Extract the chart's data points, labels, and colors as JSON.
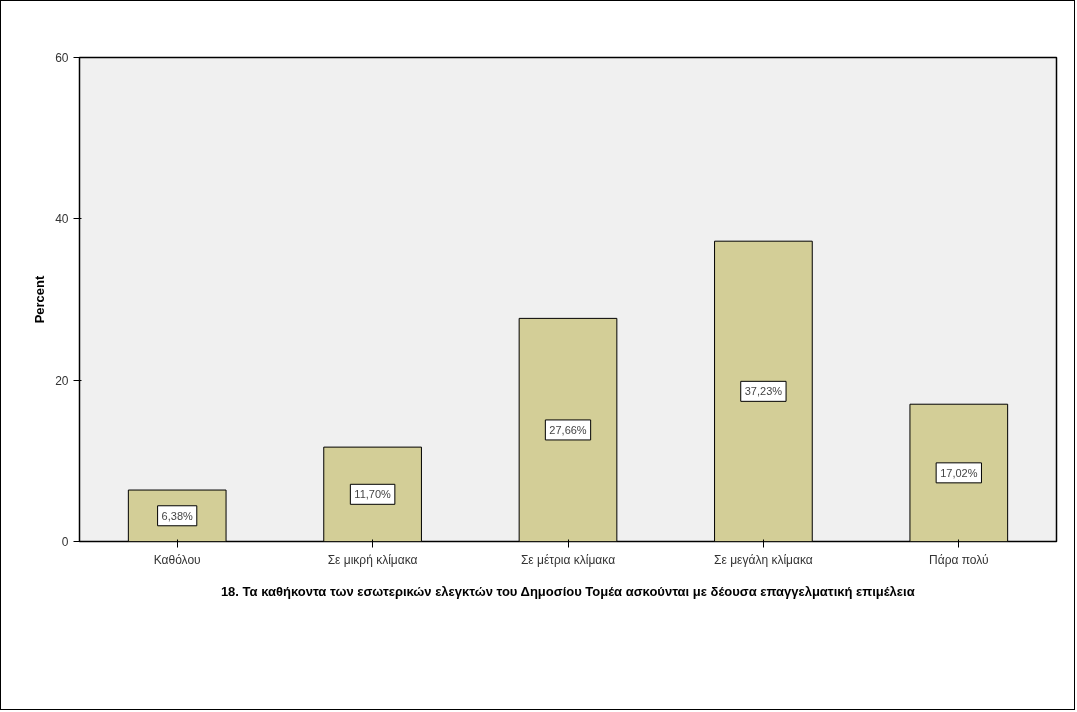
{
  "chart_data": {
    "type": "bar",
    "xlabel": "18. Τα καθήκοντα των εσωτερικών ελεγκτών του Δημοσίου Τομέα ασκούνται με δέουσα επαγγελματική επιμέλεια",
    "ylabel": "Percent",
    "categories": [
      "Καθόλου",
      "Σε μικρή κλίμακα",
      "Σε μέτρια κλίμακα",
      "Σε μεγάλη κλίμακα",
      "Πάρα πολύ"
    ],
    "values": [
      6.38,
      11.7,
      27.66,
      37.23,
      17.02
    ],
    "value_labels": [
      "6,38%",
      "11,70%",
      "27,66%",
      "37,23%",
      "17,02%"
    ],
    "color": "#d3ce97",
    "ylim": [
      0,
      60
    ],
    "yticks": [
      0,
      20,
      40,
      60
    ],
    "grid": false
  }
}
